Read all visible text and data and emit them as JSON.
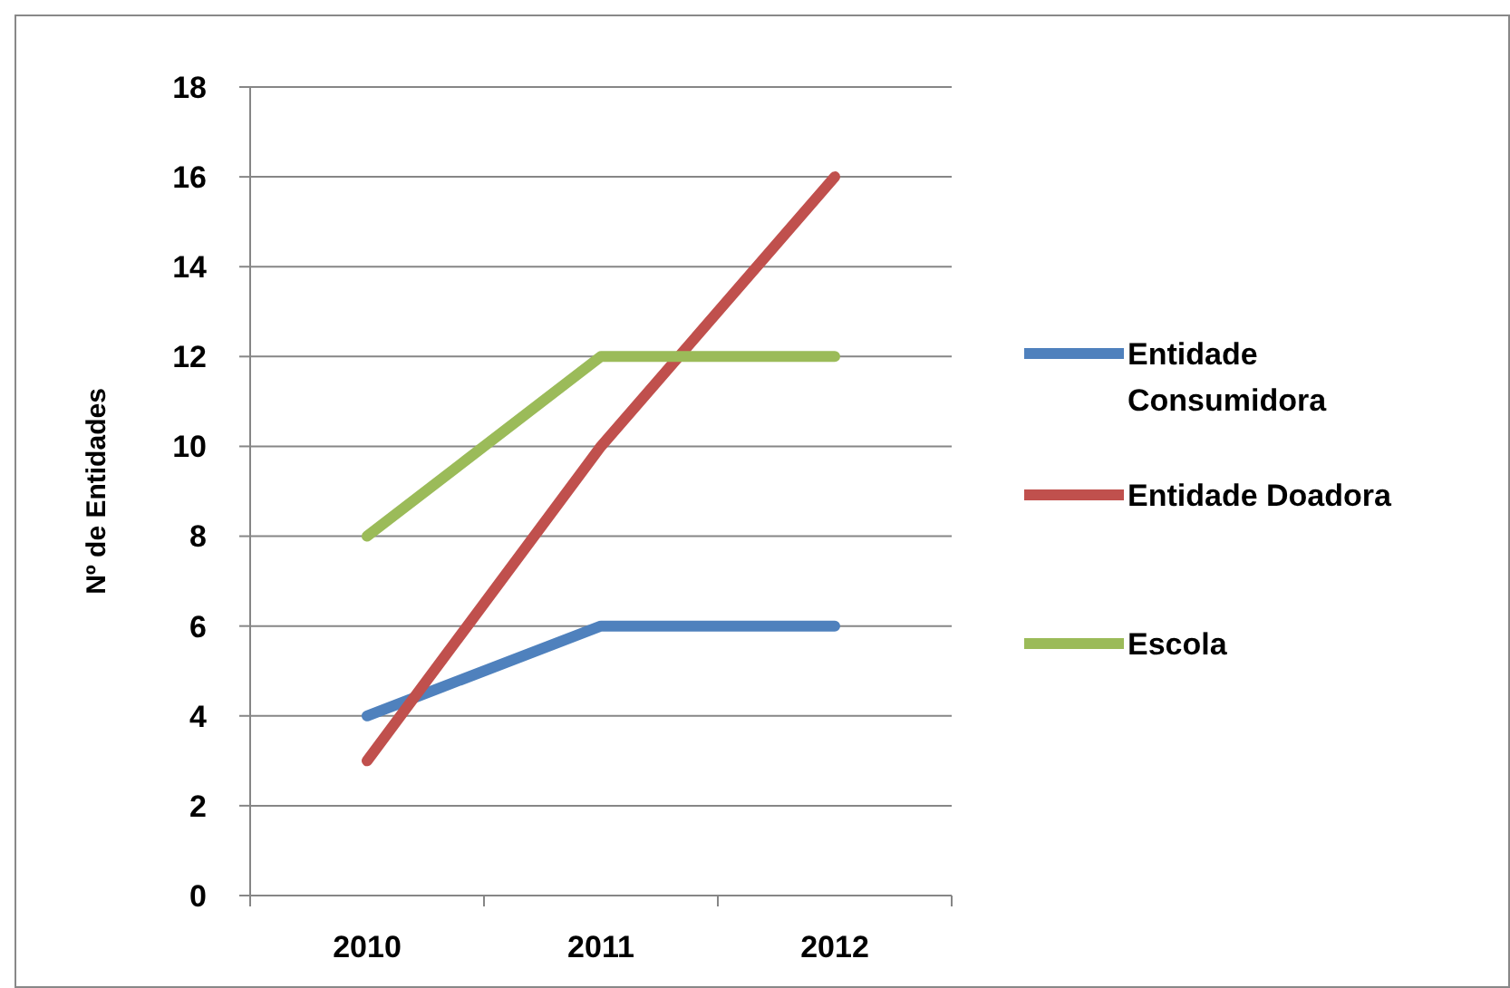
{
  "chart_data": {
    "type": "line",
    "ylabel": "Nº de Entidades",
    "categories": [
      "2010",
      "2011",
      "2012"
    ],
    "series": [
      {
        "name": "Entidade Consumidora",
        "color": "#4f81bd",
        "values": [
          4,
          6,
          6
        ]
      },
      {
        "name": "Entidade Doadora",
        "color": "#c0504d",
        "values": [
          3,
          10,
          16
        ]
      },
      {
        "name": "Escola",
        "color": "#9bbb59",
        "values": [
          8,
          12,
          12
        ]
      }
    ],
    "ylim": [
      0,
      18
    ],
    "yticks": [
      0,
      2,
      4,
      6,
      8,
      10,
      12,
      14,
      16,
      18
    ],
    "grid": "y",
    "legend": "right",
    "marker": "none",
    "line_style": "solid"
  }
}
